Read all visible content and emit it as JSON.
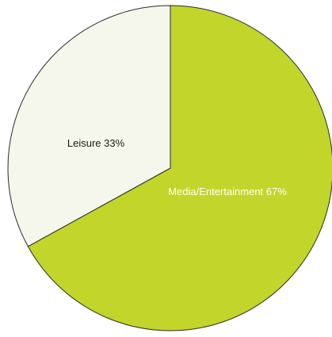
{
  "chart_data": {
    "type": "pie",
    "title": "",
    "start_angle_deg": 0,
    "direction": "clockwise",
    "slices": [
      {
        "label": "Media/Entertainment 67%",
        "value": 67,
        "color": "#c2d52a",
        "label_color": "#ffffff"
      },
      {
        "label": "Leisure 33%",
        "value": 33,
        "color": "#f5f6ec",
        "label_color": "#1a1a1a"
      }
    ],
    "outline_color": "#2b2b2b",
    "background": "#ffffff"
  }
}
